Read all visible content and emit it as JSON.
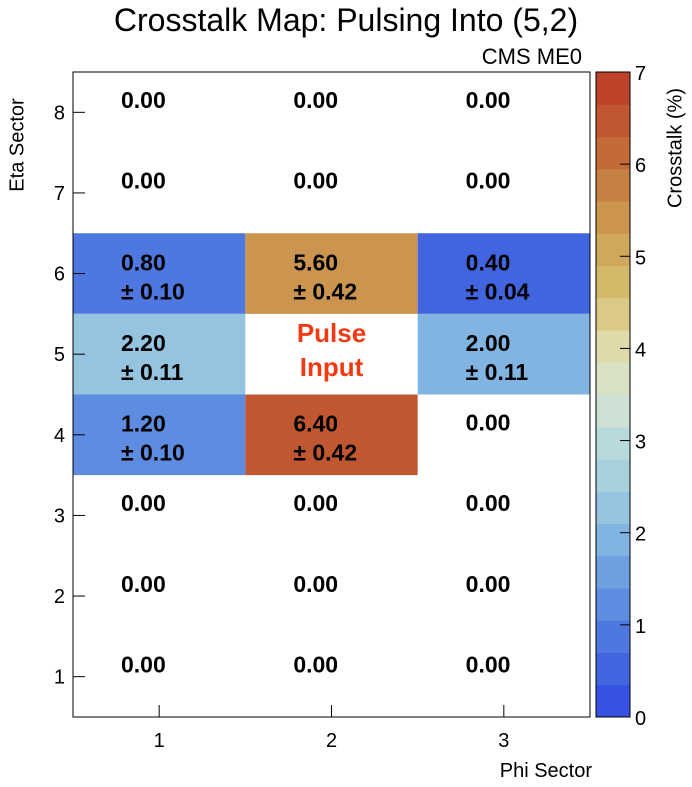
{
  "chart_data": {
    "type": "heatmap",
    "title": "Crosstalk Map: Pulsing Into (5,2)",
    "experiment_label": "CMS ME0",
    "xlabel": "Phi Sector",
    "ylabel": "Eta Sector",
    "zlabel": "Crosstalk (%)",
    "x_categories": [
      "1",
      "2",
      "3"
    ],
    "y_categories": [
      "1",
      "2",
      "3",
      "4",
      "5",
      "6",
      "7",
      "8"
    ],
    "zlim": [
      0,
      7
    ],
    "z_ticks": [
      "0",
      "1",
      "2",
      "3",
      "4",
      "5",
      "6",
      "7"
    ],
    "color_levels": 20,
    "pulse_cell": {
      "phi": 2,
      "eta": 5,
      "label_line1": "Pulse",
      "label_line2": "Input"
    },
    "cells": [
      {
        "phi": 1,
        "eta": 8,
        "value": "0.00",
        "error": ""
      },
      {
        "phi": 2,
        "eta": 8,
        "value": "0.00",
        "error": ""
      },
      {
        "phi": 3,
        "eta": 8,
        "value": "0.00",
        "error": ""
      },
      {
        "phi": 1,
        "eta": 7,
        "value": "0.00",
        "error": ""
      },
      {
        "phi": 2,
        "eta": 7,
        "value": "0.00",
        "error": ""
      },
      {
        "phi": 3,
        "eta": 7,
        "value": "0.00",
        "error": ""
      },
      {
        "phi": 1,
        "eta": 6,
        "value": "0.80",
        "error": "± 0.10"
      },
      {
        "phi": 2,
        "eta": 6,
        "value": "5.60",
        "error": "± 0.42"
      },
      {
        "phi": 3,
        "eta": 6,
        "value": "0.40",
        "error": "± 0.04"
      },
      {
        "phi": 1,
        "eta": 5,
        "value": "2.20",
        "error": "± 0.11"
      },
      {
        "phi": 3,
        "eta": 5,
        "value": "2.00",
        "error": "± 0.11"
      },
      {
        "phi": 1,
        "eta": 4,
        "value": "1.20",
        "error": "± 0.10"
      },
      {
        "phi": 2,
        "eta": 4,
        "value": "6.40",
        "error": "± 0.42"
      },
      {
        "phi": 3,
        "eta": 4,
        "value": "0.00",
        "error": ""
      },
      {
        "phi": 1,
        "eta": 3,
        "value": "0.00",
        "error": ""
      },
      {
        "phi": 2,
        "eta": 3,
        "value": "0.00",
        "error": ""
      },
      {
        "phi": 3,
        "eta": 3,
        "value": "0.00",
        "error": ""
      },
      {
        "phi": 1,
        "eta": 2,
        "value": "0.00",
        "error": ""
      },
      {
        "phi": 2,
        "eta": 2,
        "value": "0.00",
        "error": ""
      },
      {
        "phi": 3,
        "eta": 2,
        "value": "0.00",
        "error": ""
      },
      {
        "phi": 1,
        "eta": 1,
        "value": "0.00",
        "error": ""
      },
      {
        "phi": 2,
        "eta": 1,
        "value": "0.00",
        "error": ""
      },
      {
        "phi": 3,
        "eta": 1,
        "value": "0.00",
        "error": ""
      }
    ]
  }
}
